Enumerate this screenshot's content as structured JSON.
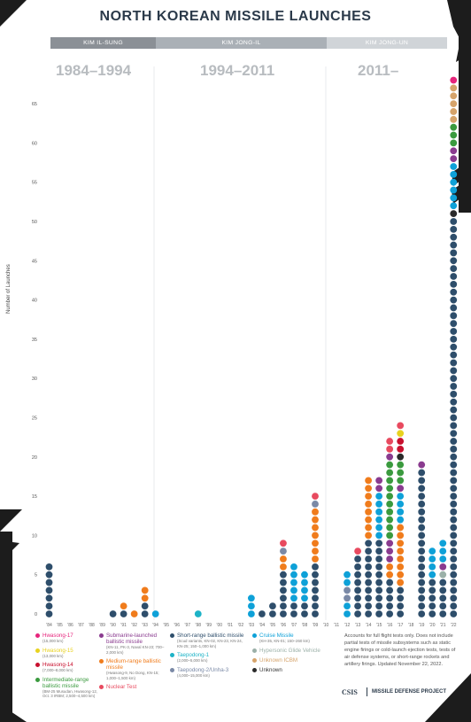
{
  "title": "NORTH KOREAN MISSILE LAUNCHES",
  "eras": [
    {
      "label": "KIM IL-SUNG",
      "color": "#8b9096"
    },
    {
      "label": "KIM JONG-IL",
      "color": "#aab0b6"
    },
    {
      "label": "KIM JONG-UN",
      "color": "#d0d4d8"
    }
  ],
  "decades": [
    "1984–1994",
    "1994–2011",
    "2011–"
  ],
  "colors": {
    "hwasong17": "#e6257c",
    "hwasong15": "#e8d21f",
    "hwasong14": "#c8102e",
    "irbm": "#3a9a3e",
    "slbm": "#8a3b8f",
    "mrbm": "#f07c1c",
    "nuclear": "#e84a5f",
    "srbm": "#2e4e6b",
    "taepodong1": "#1db3c7",
    "taepodong2": "#7a89a6",
    "cruise": "#0ea1d8",
    "hgv": "#9bb0a8",
    "icbm_unknown": "#d6a36a",
    "unknown": "#2a2a2a",
    "frame": "#1c1c1c",
    "grid": "#e4e6e8"
  },
  "legend": [
    [
      {
        "key": "hwasong17",
        "name": "Hwasong-17",
        "sub": "(15,000 km)"
      },
      {
        "key": "hwasong15",
        "name": "Hwasong-15",
        "sub": "(13,000 km)"
      },
      {
        "key": "hwasong14",
        "name": "Hwasong-14",
        "sub": "(7,000–8,000 km)"
      },
      {
        "key": "irbm",
        "name": "Intermediate-range ballistic missile",
        "sub": "(BM-25 Musudan, Hwasong-12, Oct. 3 IRBM; 2,500–4,500 km)"
      }
    ],
    [
      {
        "key": "slbm",
        "name": "Submarine-launched ballistic missile",
        "sub": "(KN-11, PK-3, Naval KN-23; 700–2,000 km)"
      },
      {
        "key": "mrbm",
        "name": "Medium-range ballistic missile",
        "sub": "(Hwasong-9, No Dong, KN-15; 1,000–1,500 km)"
      },
      {
        "key": "nuclear",
        "name": "Nuclear Test",
        "sub": ""
      }
    ],
    [
      {
        "key": "srbm",
        "name": "Short-range ballistic missile",
        "sub": "(Scud variants, KN-02, KN-23, KN-24, KN-25; 150–1,000 km)"
      },
      {
        "key": "taepodong1",
        "name": "Taepodong-1",
        "sub": "(2,000–5,000 km)"
      },
      {
        "key": "taepodong2",
        "name": "Taepodong-2/Unha-3",
        "sub": "(4,000–15,000 km)"
      }
    ],
    [
      {
        "key": "cruise",
        "name": "Cruise Missile",
        "sub": "(KH-35, KN-01; 150–260 km)"
      },
      {
        "key": "hgv",
        "name": "Hypersonic Glide Vehicle",
        "sub": ""
      },
      {
        "key": "icbm_unknown",
        "name": "Unknown ICBM",
        "sub": ""
      },
      {
        "key": "unknown",
        "name": "Unknown",
        "sub": ""
      }
    ]
  ],
  "note": "Accounts for full flight tests only. Does not include partial tests of missile subsystems such as static engine firings or cold-launch ejection tests, tests of air defense systems, or short-range rockets and artillery firings. Updated November 22, 2022.",
  "credit_org": "CSIS",
  "credit_project": "MISSILE DEFENSE PROJECT",
  "chart_data": {
    "type": "bar",
    "ylabel": "Number of Launches",
    "ylim": [
      0,
      69
    ],
    "yticks": [
      0,
      5,
      10,
      15,
      20,
      25,
      30,
      35,
      40,
      45,
      50,
      55,
      60,
      65
    ],
    "categories": [
      "'84",
      "'85",
      "'86",
      "'87",
      "'88",
      "'89",
      "'90",
      "'91",
      "'92",
      "'93",
      "'94",
      "'95",
      "'96",
      "'97",
      "'98",
      "'99",
      "'00",
      "'01",
      "'02",
      "'03",
      "'04",
      "'05",
      "'06",
      "'07",
      "'08",
      "'09",
      "'10",
      "'11",
      "'12",
      "'13",
      "'14",
      "'15",
      "'16",
      "'17",
      "'18",
      "'19",
      "'20",
      "'21",
      "'22"
    ],
    "values": [
      7,
      0,
      0,
      0,
      0,
      0,
      1,
      2,
      1,
      4,
      1,
      0,
      0,
      0,
      1,
      0,
      0,
      0,
      0,
      3,
      1,
      2,
      10,
      7,
      6,
      16,
      0,
      0,
      6,
      9,
      18,
      18,
      23,
      25,
      0,
      20,
      9,
      10,
      69
    ],
    "stacks": [
      [
        [
          "srbm",
          7
        ]
      ],
      [],
      [],
      [],
      [],
      [],
      [
        [
          "srbm",
          1
        ]
      ],
      [
        [
          "srbm",
          1
        ],
        [
          "mrbm",
          1
        ]
      ],
      [
        [
          "mrbm",
          1
        ]
      ],
      [
        [
          "srbm",
          2
        ],
        [
          "mrbm",
          2
        ]
      ],
      [
        [
          "cruise",
          1
        ]
      ],
      [],
      [],
      [],
      [
        [
          "taepodong1",
          1
        ]
      ],
      [],
      [],
      [],
      [],
      [
        [
          "cruise",
          3
        ]
      ],
      [
        [
          "srbm",
          1
        ]
      ],
      [
        [
          "srbm",
          2
        ]
      ],
      [
        [
          "srbm",
          6
        ],
        [
          "mrbm",
          2
        ],
        [
          "taepodong2",
          1
        ],
        [
          "nuclear",
          1
        ]
      ],
      [
        [
          "srbm",
          2
        ],
        [
          "cruise",
          5
        ]
      ],
      [
        [
          "srbm",
          2
        ],
        [
          "cruise",
          4
        ]
      ],
      [
        [
          "srbm",
          7
        ],
        [
          "mrbm",
          7
        ],
        [
          "taepodong2",
          1
        ],
        [
          "nuclear",
          1
        ]
      ],
      [],
      [],
      [
        [
          "cruise",
          2
        ],
        [
          "taepodong2",
          2
        ],
        [
          "cruise",
          2
        ]
      ],
      [
        [
          "srbm",
          8
        ],
        [
          "nuclear",
          1
        ]
      ],
      [
        [
          "srbm",
          10
        ],
        [
          "mrbm",
          7
        ],
        [
          "mrbm",
          1
        ]
      ],
      [
        [
          "srbm",
          10
        ],
        [
          "cruise",
          6
        ],
        [
          "slbm",
          2
        ]
      ],
      [
        [
          "srbm",
          5
        ],
        [
          "mrbm",
          2
        ],
        [
          "slbm",
          3
        ],
        [
          "irbm",
          10
        ],
        [
          "slbm",
          1
        ],
        [
          "nuclear",
          2
        ]
      ],
      [
        [
          "srbm",
          4
        ],
        [
          "mrbm",
          8
        ],
        [
          "cruise",
          4
        ],
        [
          "slbm",
          1
        ],
        [
          "irbm",
          3
        ],
        [
          "unknown",
          1
        ],
        [
          "hwasong14",
          2
        ],
        [
          "hwasong15",
          1
        ],
        [
          "nuclear",
          1
        ]
      ],
      [],
      [
        [
          "srbm",
          19
        ],
        [
          "slbm",
          1
        ]
      ],
      [
        [
          "srbm",
          5
        ],
        [
          "cruise",
          4
        ]
      ],
      [
        [
          "srbm",
          5
        ],
        [
          "hgv",
          1
        ],
        [
          "slbm",
          1
        ],
        [
          "cruise",
          3
        ]
      ],
      [
        [
          "srbm",
          51
        ],
        [
          "unknown",
          1
        ],
        [
          "cruise",
          6
        ],
        [
          "slbm",
          2
        ],
        [
          "irbm",
          3
        ],
        [
          "icbm_unknown",
          5
        ],
        [
          "hwasong17",
          1
        ]
      ]
    ]
  }
}
